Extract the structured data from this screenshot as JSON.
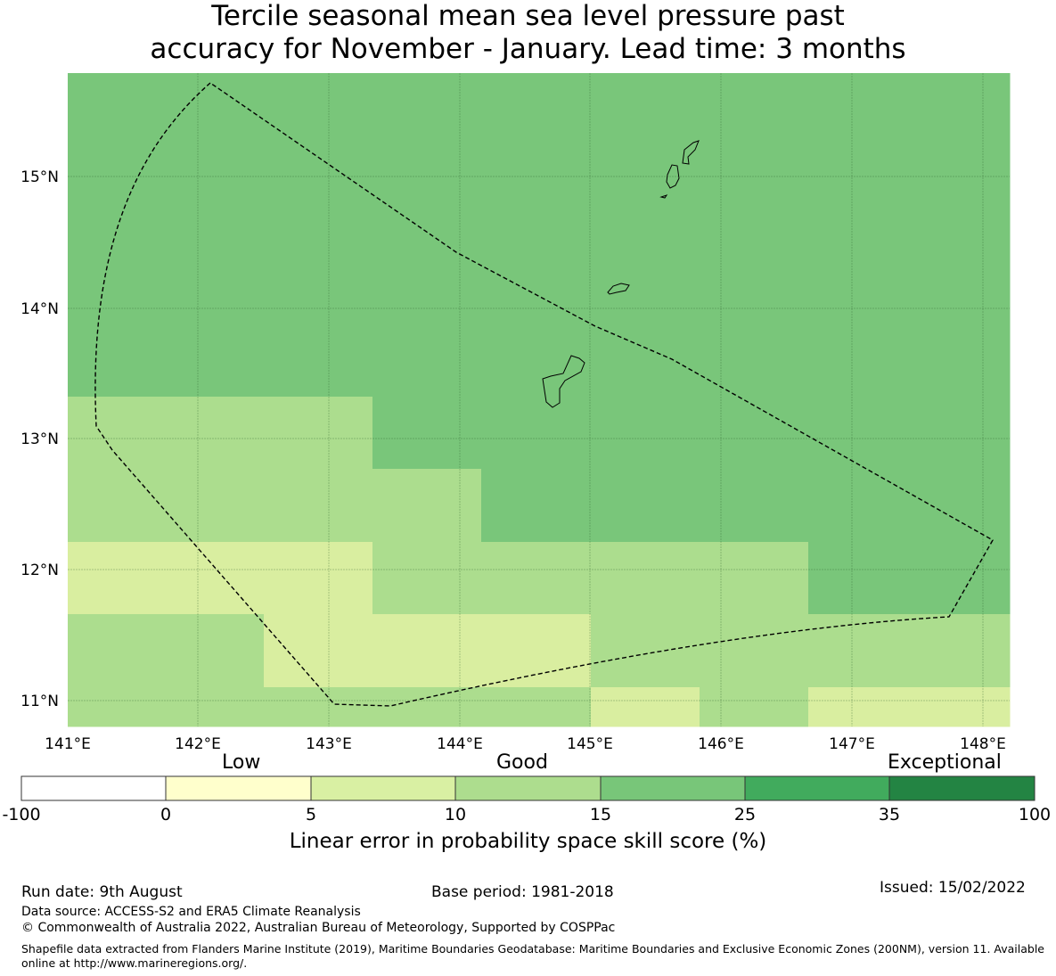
{
  "title": {
    "line1": "Tercile seasonal mean sea level pressure past",
    "line2": "accuracy for November - January. Lead time: 3 months"
  },
  "map": {
    "lat_ticks": [
      "15°N",
      "14°N",
      "13°N",
      "12°N",
      "11°N"
    ],
    "lon_ticks": [
      "141°E",
      "142°E",
      "143°E",
      "144°E",
      "145°E",
      "146°E",
      "147°E",
      "148°E"
    ],
    "boundary": "exclusive-economic-zone-dashed-line",
    "colors": {
      "band_5_10": "#d9eea0",
      "band_10_15": "#acdd8e",
      "band_15_25": "#79c67a"
    }
  },
  "colorbar": {
    "categories": [
      "Low",
      "Good",
      "Exceptional"
    ],
    "ticks": [
      "-100",
      "0",
      "5",
      "10",
      "15",
      "25",
      "35",
      "100"
    ],
    "colors": [
      "#ffffff",
      "#ffffcc",
      "#d9f0a3",
      "#addd8e",
      "#78c679",
      "#41ab5d",
      "#238443"
    ],
    "label": "Linear error in probability space skill score (%)"
  },
  "footer": {
    "run_date": "Run date: 9th August",
    "base_period": "Base period: 1981-2018",
    "issued": "Issued: 15/02/2022",
    "data_source": "Data source: ACCESS-S2 and ERA5 Climate Reanalysis",
    "copyright": "© Commonwealth of Australia 2022, Australian Bureau of Meteorology, Supported by COSPPac",
    "shapefile": "Shapefile data extracted from Flanders Marine Institute (2019), Maritime Boundaries Geodatabase: Maritime Boundaries and Exclusive Economic Zones (200NM), version 11. Available online at http://www.marineregions.org/."
  }
}
